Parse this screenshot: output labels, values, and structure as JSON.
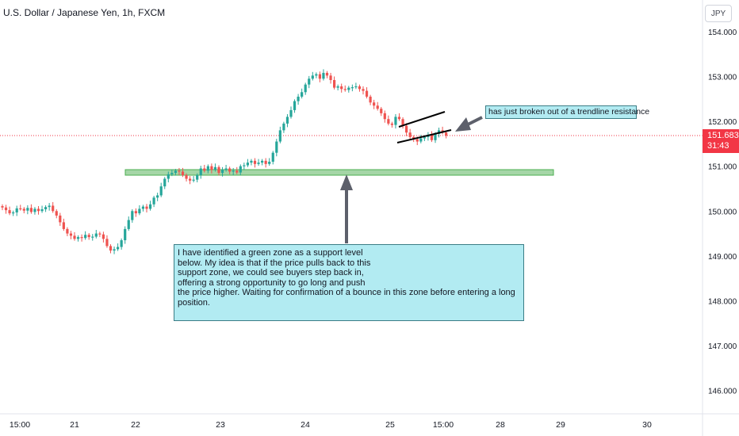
{
  "chart_data": {
    "type": "candlestick",
    "title": "U.S. Dollar / Japanese Yen, 1h, FXCM",
    "currency_label": "JPY",
    "y_tick_labels": [
      "154.000",
      "153.000",
      "152.000",
      "151.000",
      "150.000",
      "149.000",
      "148.000",
      "147.000",
      "146.000"
    ],
    "y_ticks": [
      154,
      153,
      152,
      151,
      150,
      149,
      148,
      147,
      146
    ],
    "ylim": [
      145.6,
      154.3
    ],
    "x_tick_labels": [
      "15:00",
      "21",
      "22",
      "23",
      "24",
      "25",
      "15:00",
      "28",
      "29",
      "30"
    ],
    "last_price": "151.683",
    "countdown": "31:43",
    "support_zone": [
      150.76,
      150.88
    ],
    "closes": [
      150.08,
      150.02,
      149.95,
      149.97,
      150.06,
      150.05,
      150.01,
      150.07,
      149.98,
      150.05,
      150.0,
      150.04,
      150.09,
      150.12,
      150.0,
      149.9,
      149.75,
      149.6,
      149.5,
      149.45,
      149.38,
      149.42,
      149.4,
      149.47,
      149.42,
      149.43,
      149.5,
      149.48,
      149.38,
      149.22,
      149.12,
      149.15,
      149.2,
      149.35,
      149.6,
      149.8,
      150.0,
      149.95,
      150.05,
      150.1,
      150.05,
      150.15,
      150.3,
      150.35,
      150.55,
      150.72,
      150.82,
      150.85,
      150.9,
      150.88,
      150.8,
      150.72,
      150.68,
      150.7,
      150.8,
      150.95,
      150.9,
      151.0,
      150.92,
      150.98,
      150.85,
      150.92,
      150.95,
      150.88,
      150.9,
      150.86,
      151.0,
      151.02,
      151.08,
      151.12,
      151.05,
      151.08,
      151.12,
      151.05,
      151.1,
      151.3,
      151.55,
      151.8,
      151.95,
      152.1,
      152.25,
      152.45,
      152.55,
      152.65,
      152.82,
      152.95,
      153.02,
      153.05,
      152.95,
      153.08,
      153.02,
      152.92,
      152.75,
      152.78,
      152.72,
      152.7,
      152.75,
      152.76,
      152.78,
      152.72,
      152.68,
      152.55,
      152.42,
      152.35,
      152.28,
      152.18,
      152.05,
      151.95,
      151.92,
      152.1,
      152.05,
      151.9,
      151.75,
      151.65,
      151.6,
      151.55,
      151.62,
      151.65,
      151.7,
      151.58,
      151.72,
      151.8,
      151.75,
      151.68
    ]
  },
  "annotations": {
    "breakout_note": "has just broken out of a trendline resistance",
    "support_note": " I have identified a green zone as a support level\nbelow. My idea is that if the price pulls back to this\n support zone, we could see buyers step back in,\noffering a strong opportunity to go long and push\nthe price higher. Waiting for confirmation of a bounce in this zone before entering a long\nposition."
  },
  "colors": {
    "up": "#26a69a",
    "down": "#ef5350",
    "zone_fill": "#a5d6a7",
    "zone_border": "#66bb6a",
    "last_price": "#f23645",
    "note_bg": "#b2ebf2",
    "arrow": "#5d606b"
  }
}
